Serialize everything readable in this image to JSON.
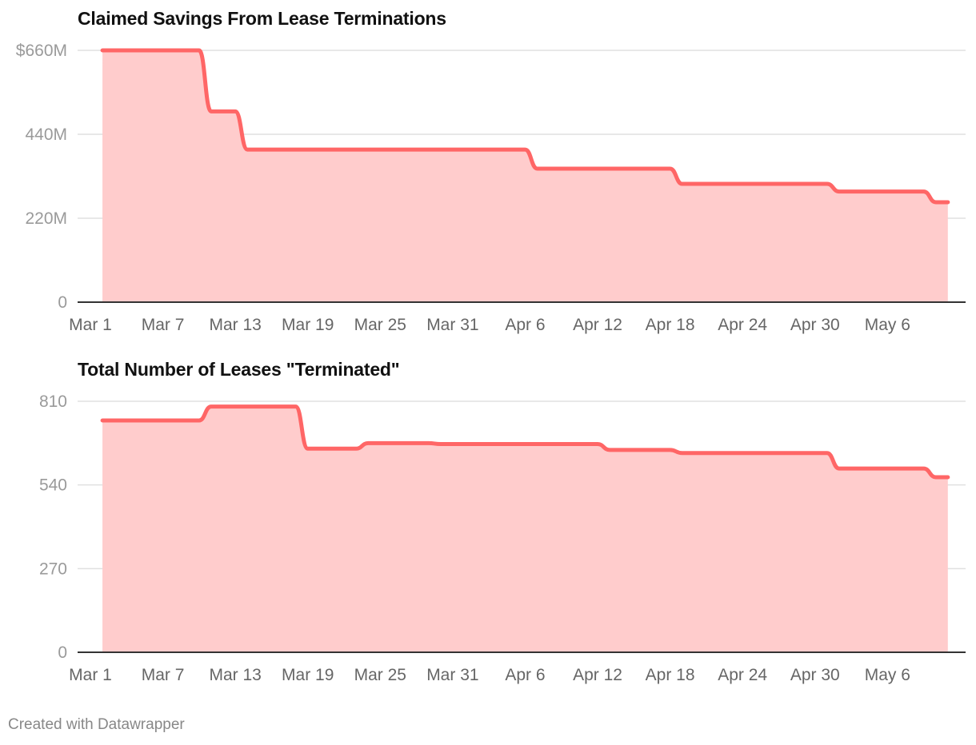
{
  "footer": "Created with Datawrapper",
  "colors": {
    "line": "#ff6666",
    "area": "#ffcccc",
    "grid": "#e0e0e0",
    "axis": "#333333"
  },
  "chart_data": [
    {
      "type": "area",
      "title": "Claimed Savings From Lease Terminations",
      "xlabel": "",
      "ylabel": "",
      "x_range": [
        "2025-03-01",
        "2025-05-13"
      ],
      "ylim": [
        0,
        660
      ],
      "y_ticks": [
        {
          "value": 0,
          "label": "0"
        },
        {
          "value": 220,
          "label": "220M"
        },
        {
          "value": 440,
          "label": "440M"
        },
        {
          "value": 660,
          "label": "$660M"
        }
      ],
      "x_ticks": [
        {
          "date": "2025-03-01",
          "label": "Mar 1"
        },
        {
          "date": "2025-03-07",
          "label": "Mar 7"
        },
        {
          "date": "2025-03-13",
          "label": "Mar 13"
        },
        {
          "date": "2025-03-19",
          "label": "Mar 19"
        },
        {
          "date": "2025-03-25",
          "label": "Mar 25"
        },
        {
          "date": "2025-03-31",
          "label": "Mar 31"
        },
        {
          "date": "2025-04-06",
          "label": "Apr 6"
        },
        {
          "date": "2025-04-12",
          "label": "Apr 12"
        },
        {
          "date": "2025-04-18",
          "label": "Apr 18"
        },
        {
          "date": "2025-04-24",
          "label": "Apr 24"
        },
        {
          "date": "2025-04-30",
          "label": "Apr 30"
        },
        {
          "date": "2025-05-06",
          "label": "May 6"
        }
      ],
      "points": [
        {
          "date": "2025-03-02",
          "value": 660
        },
        {
          "date": "2025-03-10",
          "value": 660
        },
        {
          "date": "2025-03-11",
          "value": 500
        },
        {
          "date": "2025-03-13",
          "value": 500
        },
        {
          "date": "2025-03-14",
          "value": 400
        },
        {
          "date": "2025-04-06",
          "value": 400
        },
        {
          "date": "2025-04-07",
          "value": 350
        },
        {
          "date": "2025-04-18",
          "value": 350
        },
        {
          "date": "2025-04-19",
          "value": 310
        },
        {
          "date": "2025-05-01",
          "value": 310
        },
        {
          "date": "2025-05-02",
          "value": 290
        },
        {
          "date": "2025-05-09",
          "value": 290
        },
        {
          "date": "2025-05-10",
          "value": 262
        },
        {
          "date": "2025-05-11",
          "value": 262
        }
      ]
    },
    {
      "type": "area",
      "title": "Total Number of Leases \"Terminated\"",
      "xlabel": "",
      "ylabel": "",
      "x_range": [
        "2025-03-01",
        "2025-05-13"
      ],
      "ylim": [
        0,
        810
      ],
      "y_ticks": [
        {
          "value": 0,
          "label": "0"
        },
        {
          "value": 270,
          "label": "270"
        },
        {
          "value": 540,
          "label": "540"
        },
        {
          "value": 810,
          "label": "810"
        }
      ],
      "x_ticks": [
        {
          "date": "2025-03-01",
          "label": "Mar 1"
        },
        {
          "date": "2025-03-07",
          "label": "Mar 7"
        },
        {
          "date": "2025-03-13",
          "label": "Mar 13"
        },
        {
          "date": "2025-03-19",
          "label": "Mar 19"
        },
        {
          "date": "2025-03-25",
          "label": "Mar 25"
        },
        {
          "date": "2025-03-31",
          "label": "Mar 31"
        },
        {
          "date": "2025-04-06",
          "label": "Apr 6"
        },
        {
          "date": "2025-04-12",
          "label": "Apr 12"
        },
        {
          "date": "2025-04-18",
          "label": "Apr 18"
        },
        {
          "date": "2025-04-24",
          "label": "Apr 24"
        },
        {
          "date": "2025-04-30",
          "label": "Apr 30"
        },
        {
          "date": "2025-05-06",
          "label": "May 6"
        }
      ],
      "points": [
        {
          "date": "2025-03-02",
          "value": 748
        },
        {
          "date": "2025-03-10",
          "value": 748
        },
        {
          "date": "2025-03-11",
          "value": 793
        },
        {
          "date": "2025-03-18",
          "value": 793
        },
        {
          "date": "2025-03-19",
          "value": 657
        },
        {
          "date": "2025-03-23",
          "value": 657
        },
        {
          "date": "2025-03-24",
          "value": 675
        },
        {
          "date": "2025-03-29",
          "value": 675
        },
        {
          "date": "2025-03-30",
          "value": 672
        },
        {
          "date": "2025-04-12",
          "value": 672
        },
        {
          "date": "2025-04-13",
          "value": 653
        },
        {
          "date": "2025-04-18",
          "value": 653
        },
        {
          "date": "2025-04-19",
          "value": 643
        },
        {
          "date": "2025-05-01",
          "value": 643
        },
        {
          "date": "2025-05-02",
          "value": 593
        },
        {
          "date": "2025-05-09",
          "value": 593
        },
        {
          "date": "2025-05-10",
          "value": 565
        },
        {
          "date": "2025-05-11",
          "value": 565
        }
      ]
    }
  ]
}
